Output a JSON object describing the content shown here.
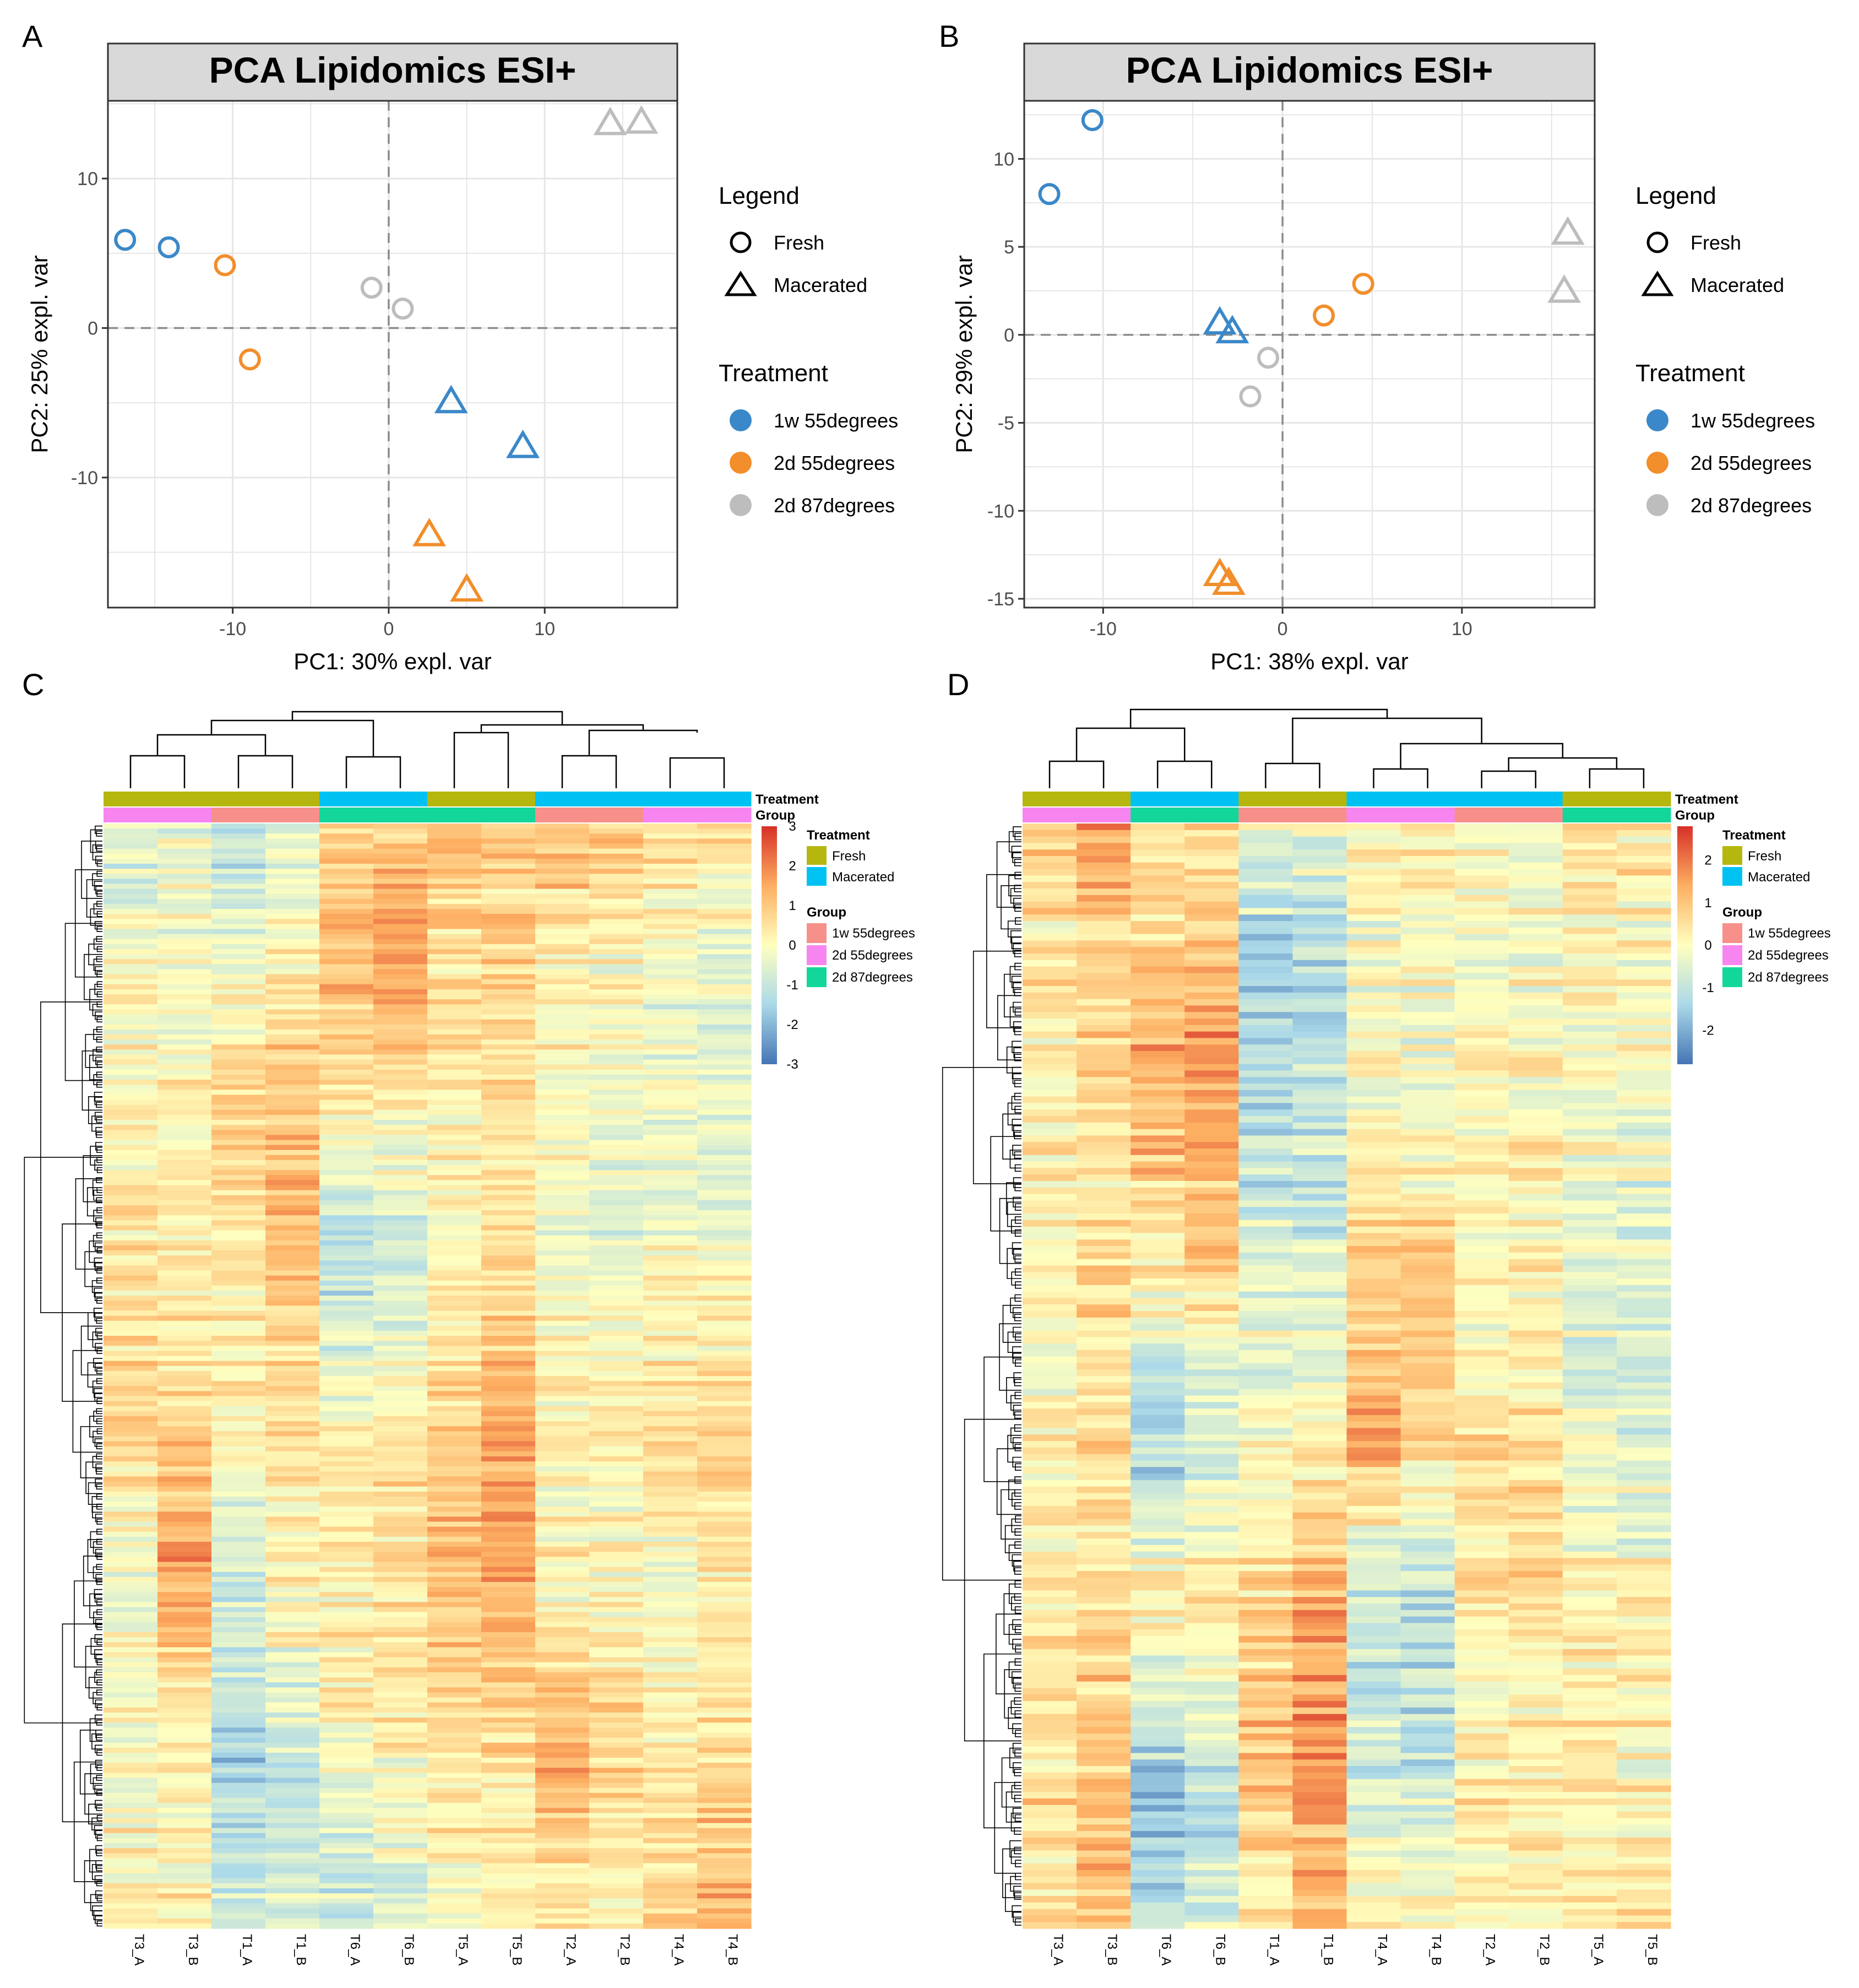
{
  "figure": {
    "panels": [
      {
        "letter": "A"
      },
      {
        "letter": "B"
      },
      {
        "letter": "C"
      },
      {
        "letter": "D"
      }
    ]
  },
  "colors": {
    "blue": "#3a88c9",
    "orange": "#f28e2b",
    "grey": "#bdbdbd",
    "fresh": "#b5b70f",
    "macerated": "#00c2f2",
    "g1w55": "#f7908a",
    "g2d55": "#f785f0",
    "g2d87": "#13d79a",
    "strip_fill": "#d9d9d9",
    "grid": "#e6e6e6",
    "heat_low": "#4575b4",
    "heat_mid": "#ffffbf",
    "heat_high": "#d73027"
  },
  "chart_data": [
    {
      "type": "scatter",
      "panel": "A",
      "title": "PCA Lipidomics ESI+",
      "xlabel": "PC1: 30% expl. var",
      "ylabel": "PC2: 25% expl. var",
      "xlim": [
        -18,
        18.5
      ],
      "ylim": [
        -18.7,
        15.2
      ],
      "xticks": [
        -10,
        0,
        10
      ],
      "yticks": [
        10,
        0,
        -10
      ],
      "legend": {
        "position": "right",
        "shape_title": "Legend",
        "shapes": [
          {
            "label": "Fresh",
            "shape": "circle"
          },
          {
            "label": "Macerated",
            "shape": "triangle"
          }
        ],
        "color_title": "Treatment",
        "colors": [
          {
            "label": "1w 55degrees",
            "color": "#3a88c9"
          },
          {
            "label": "2d 55degrees",
            "color": "#f28e2b"
          },
          {
            "label": "2d 87degrees",
            "color": "#bdbdbd"
          }
        ]
      },
      "points": [
        {
          "x": -16.9,
          "y": 5.9,
          "shape": "circle",
          "treatment": "1w 55degrees"
        },
        {
          "x": -14.1,
          "y": 5.4,
          "shape": "circle",
          "treatment": "1w 55degrees"
        },
        {
          "x": -10.5,
          "y": 4.2,
          "shape": "circle",
          "treatment": "2d 55degrees"
        },
        {
          "x": -8.9,
          "y": -2.1,
          "shape": "circle",
          "treatment": "2d 55degrees"
        },
        {
          "x": -1.1,
          "y": 2.7,
          "shape": "circle",
          "treatment": "2d 87degrees"
        },
        {
          "x": 0.9,
          "y": 1.3,
          "shape": "circle",
          "treatment": "2d 87degrees"
        },
        {
          "x": 4.0,
          "y": -4.9,
          "shape": "triangle",
          "treatment": "1w 55degrees"
        },
        {
          "x": 8.6,
          "y": -7.9,
          "shape": "triangle",
          "treatment": "1w 55degrees"
        },
        {
          "x": 2.6,
          "y": -13.8,
          "shape": "triangle",
          "treatment": "2d 55degrees"
        },
        {
          "x": 5.0,
          "y": -17.5,
          "shape": "triangle",
          "treatment": "2d 55degrees"
        },
        {
          "x": 14.2,
          "y": 13.7,
          "shape": "triangle",
          "treatment": "2d 87degrees"
        },
        {
          "x": 16.2,
          "y": 13.8,
          "shape": "triangle",
          "treatment": "2d 87degrees"
        }
      ]
    },
    {
      "type": "scatter",
      "panel": "B",
      "title": "PCA Lipidomics ESI+",
      "xlabel": "PC1: 38% expl. var",
      "ylabel": "PC2: 29% expl. var",
      "xlim": [
        -14.4,
        17.4
      ],
      "ylim": [
        -15.5,
        13.3
      ],
      "xticks": [
        -10,
        0,
        10
      ],
      "yticks": [
        10,
        5,
        0,
        -5,
        -10,
        -15
      ],
      "legend": {
        "position": "right",
        "shape_title": "Legend",
        "shapes": [
          {
            "label": "Fresh",
            "shape": "circle"
          },
          {
            "label": "Macerated",
            "shape": "triangle"
          }
        ],
        "color_title": "Treatment",
        "colors": [
          {
            "label": "1w 55degrees",
            "color": "#3a88c9"
          },
          {
            "label": "2d 55degrees",
            "color": "#f28e2b"
          },
          {
            "label": "2d 87degrees",
            "color": "#bdbdbd"
          }
        ]
      },
      "points": [
        {
          "x": -13.0,
          "y": 8.0,
          "shape": "circle",
          "treatment": "1w 55degrees"
        },
        {
          "x": -10.6,
          "y": 12.2,
          "shape": "circle",
          "treatment": "1w 55degrees"
        },
        {
          "x": 2.3,
          "y": 1.1,
          "shape": "circle",
          "treatment": "2d 55degrees"
        },
        {
          "x": 4.5,
          "y": 2.9,
          "shape": "circle",
          "treatment": "2d 55degrees"
        },
        {
          "x": -0.8,
          "y": -1.3,
          "shape": "circle",
          "treatment": "2d 87degrees"
        },
        {
          "x": -1.8,
          "y": -3.5,
          "shape": "circle",
          "treatment": "2d 87degrees"
        },
        {
          "x": -3.5,
          "y": 0.7,
          "shape": "triangle",
          "treatment": "1w 55degrees"
        },
        {
          "x": -2.8,
          "y": 0.2,
          "shape": "triangle",
          "treatment": "1w 55degrees"
        },
        {
          "x": -3.5,
          "y": -13.6,
          "shape": "triangle",
          "treatment": "2d 55degrees"
        },
        {
          "x": -3.0,
          "y": -14.1,
          "shape": "triangle",
          "treatment": "2d 55degrees"
        },
        {
          "x": 15.9,
          "y": 5.8,
          "shape": "triangle",
          "treatment": "2d 87degrees"
        },
        {
          "x": 15.7,
          "y": 2.5,
          "shape": "triangle",
          "treatment": "2d 87degrees"
        }
      ]
    },
    {
      "type": "heatmap",
      "panel": "C",
      "samples": [
        "T3_A",
        "T3_B",
        "T1_A",
        "T1_B",
        "T6_A",
        "T6_B",
        "T5_A",
        "T5_B",
        "T2_A",
        "T2_B",
        "T4_A",
        "T4_B"
      ],
      "treatment": [
        "Fresh",
        "Fresh",
        "Fresh",
        "Fresh",
        "Macerated",
        "Macerated",
        "Fresh",
        "Fresh",
        "Macerated",
        "Macerated",
        "Macerated",
        "Macerated"
      ],
      "group": [
        "2d 55degrees",
        "2d 55degrees",
        "1w 55degrees",
        "1w 55degrees",
        "2d 87degrees",
        "2d 87degrees",
        "2d 87degrees",
        "2d 87degrees",
        "1w 55degrees",
        "1w 55degrees",
        "2d 55degrees",
        "2d 55degrees"
      ],
      "annotation_names": [
        "Treatment",
        "Group"
      ],
      "scale_ticks": [
        3,
        2,
        1,
        0,
        -1,
        -2,
        -3
      ],
      "scale_range": [
        -3,
        3
      ],
      "legend": {
        "treatment_title": "Treatment",
        "treatment_items": [
          {
            "label": "Fresh",
            "color": "#b5b70f"
          },
          {
            "label": "Macerated",
            "color": "#00c2f2"
          }
        ],
        "group_title": "Group",
        "group_items": [
          {
            "label": "1w 55degrees",
            "color": "#f7908a"
          },
          {
            "label": "2d 55degrees",
            "color": "#f785f0"
          },
          {
            "label": "2d 87degrees",
            "color": "#13d79a"
          }
        ]
      },
      "rows": 220,
      "column_profiles": [
        [
          [
            0,
            -0.8
          ],
          [
            0.1,
            -0.3
          ],
          [
            0.3,
            0.4
          ],
          [
            0.5,
            0.8
          ],
          [
            0.7,
            -0.3
          ],
          [
            0.85,
            0.1
          ],
          [
            1,
            0.3
          ]
        ],
        [
          [
            0,
            -0.6
          ],
          [
            0.1,
            -0.2
          ],
          [
            0.3,
            0.3
          ],
          [
            0.5,
            0.6
          ],
          [
            0.68,
            1.8
          ],
          [
            0.85,
            0.2
          ],
          [
            1,
            0.4
          ]
        ],
        [
          [
            0,
            -1.2
          ],
          [
            0.1,
            -0.5
          ],
          [
            0.28,
            1.0
          ],
          [
            0.5,
            0.2
          ],
          [
            0.7,
            -0.8
          ],
          [
            0.85,
            -1.6
          ],
          [
            1,
            -0.9
          ]
        ],
        [
          [
            0,
            -0.7
          ],
          [
            0.1,
            0.0
          ],
          [
            0.28,
            1.6
          ],
          [
            0.5,
            0.6
          ],
          [
            0.7,
            0.2
          ],
          [
            0.85,
            -1.1
          ],
          [
            1,
            -0.5
          ]
        ],
        [
          [
            0,
            0.8
          ],
          [
            0.12,
            1.6
          ],
          [
            0.25,
            0.4
          ],
          [
            0.38,
            -1.4
          ],
          [
            0.6,
            0.4
          ],
          [
            0.8,
            0.2
          ],
          [
            1,
            -1.1
          ]
        ],
        [
          [
            0,
            0.6
          ],
          [
            0.12,
            2.0
          ],
          [
            0.25,
            0.3
          ],
          [
            0.38,
            -0.9
          ],
          [
            0.6,
            0.6
          ],
          [
            0.8,
            0.4
          ],
          [
            1,
            -0.6
          ]
        ],
        [
          [
            0,
            1.2
          ],
          [
            0.12,
            0.7
          ],
          [
            0.3,
            0.2
          ],
          [
            0.5,
            0.6
          ],
          [
            0.65,
            1.3
          ],
          [
            0.85,
            0.5
          ],
          [
            1,
            0.2
          ]
        ],
        [
          [
            0,
            1.0
          ],
          [
            0.12,
            0.9
          ],
          [
            0.3,
            0.3
          ],
          [
            0.48,
            1.3
          ],
          [
            0.65,
            1.8
          ],
          [
            0.85,
            0.7
          ],
          [
            1,
            0.3
          ]
        ],
        [
          [
            0,
            1.2
          ],
          [
            0.15,
            0.2
          ],
          [
            0.35,
            -0.2
          ],
          [
            0.55,
            0.2
          ],
          [
            0.7,
            0.1
          ],
          [
            0.85,
            1.6
          ],
          [
            1,
            0.5
          ]
        ],
        [
          [
            0,
            0.8
          ],
          [
            0.15,
            0.0
          ],
          [
            0.35,
            -0.4
          ],
          [
            0.55,
            0.3
          ],
          [
            0.7,
            0.0
          ],
          [
            0.85,
            1.0
          ],
          [
            1,
            0.3
          ]
        ],
        [
          [
            0,
            0.6
          ],
          [
            0.15,
            -0.3
          ],
          [
            0.35,
            -0.2
          ],
          [
            0.55,
            0.6
          ],
          [
            0.7,
            -0.2
          ],
          [
            0.85,
            0.6
          ],
          [
            1,
            1.1
          ]
        ],
        [
          [
            0,
            0.4
          ],
          [
            0.15,
            -0.6
          ],
          [
            0.35,
            -0.5
          ],
          [
            0.55,
            0.9
          ],
          [
            0.7,
            0.3
          ],
          [
            0.85,
            0.8
          ],
          [
            1,
            1.7
          ]
        ]
      ]
    },
    {
      "type": "heatmap",
      "panel": "D",
      "samples": [
        "T3_A",
        "T3_B",
        "T6_A",
        "T6_B",
        "T1_A",
        "T1_B",
        "T4_A",
        "T4_B",
        "T2_A",
        "T2_B",
        "T5_A",
        "T5_B"
      ],
      "treatment": [
        "Fresh",
        "Fresh",
        "Macerated",
        "Macerated",
        "Fresh",
        "Fresh",
        "Macerated",
        "Macerated",
        "Macerated",
        "Macerated",
        "Fresh",
        "Fresh"
      ],
      "group": [
        "2d 55degrees",
        "2d 55degrees",
        "2d 87degrees",
        "2d 87degrees",
        "1w 55degrees",
        "1w 55degrees",
        "2d 55degrees",
        "2d 55degrees",
        "1w 55degrees",
        "1w 55degrees",
        "2d 87degrees",
        "2d 87degrees"
      ],
      "annotation_names": [
        "Treatment",
        "Group"
      ],
      "scale_ticks": [
        2,
        1,
        0,
        -1,
        -2
      ],
      "scale_range": [
        -2.8,
        2.8
      ],
      "legend": {
        "treatment_title": "Treatment",
        "treatment_items": [
          {
            "label": "Fresh",
            "color": "#b5b70f"
          },
          {
            "label": "Macerated",
            "color": "#00c2f2"
          }
        ],
        "group_title": "Group",
        "group_items": [
          {
            "label": "1w 55degrees",
            "color": "#f7908a"
          },
          {
            "label": "2d 55degrees",
            "color": "#f785f0"
          },
          {
            "label": "2d 87degrees",
            "color": "#13d79a"
          }
        ]
      },
      "rows": 170,
      "column_profiles": [
        [
          [
            0,
            0.8
          ],
          [
            0.15,
            0.4
          ],
          [
            0.35,
            0.2
          ],
          [
            0.5,
            0.1
          ],
          [
            0.7,
            0.3
          ],
          [
            0.88,
            0.7
          ],
          [
            1,
            0.5
          ]
        ],
        [
          [
            0,
            1.6
          ],
          [
            0.15,
            1.0
          ],
          [
            0.35,
            0.4
          ],
          [
            0.5,
            0.6
          ],
          [
            0.7,
            0.5
          ],
          [
            0.88,
            1.3
          ],
          [
            1,
            1.0
          ]
        ],
        [
          [
            0,
            0.4
          ],
          [
            0.2,
            1.6
          ],
          [
            0.35,
            0.8
          ],
          [
            0.55,
            -1.6
          ],
          [
            0.7,
            0.2
          ],
          [
            0.88,
            -1.9
          ],
          [
            1,
            -1.5
          ]
        ],
        [
          [
            0,
            0.5
          ],
          [
            0.2,
            1.9
          ],
          [
            0.35,
            1.2
          ],
          [
            0.55,
            -0.9
          ],
          [
            0.7,
            0.3
          ],
          [
            0.88,
            -1.2
          ],
          [
            1,
            -0.8
          ]
        ],
        [
          [
            0,
            -0.6
          ],
          [
            0.15,
            -1.5
          ],
          [
            0.35,
            -0.9
          ],
          [
            0.5,
            -0.4
          ],
          [
            0.7,
            0.6
          ],
          [
            0.85,
            1.1
          ],
          [
            1,
            0.4
          ]
        ],
        [
          [
            0,
            -0.5
          ],
          [
            0.15,
            -1.2
          ],
          [
            0.35,
            -1.0
          ],
          [
            0.5,
            -0.2
          ],
          [
            0.7,
            1.4
          ],
          [
            0.85,
            1.9
          ],
          [
            1,
            1.0
          ]
        ],
        [
          [
            0,
            0.0
          ],
          [
            0.25,
            0.1
          ],
          [
            0.45,
            0.9
          ],
          [
            0.55,
            1.8
          ],
          [
            0.7,
            -1.2
          ],
          [
            0.85,
            -0.7
          ],
          [
            1,
            0.2
          ]
        ],
        [
          [
            0,
            0.2
          ],
          [
            0.25,
            -0.2
          ],
          [
            0.45,
            1.1
          ],
          [
            0.55,
            0.8
          ],
          [
            0.7,
            -1.5
          ],
          [
            0.85,
            -1.0
          ],
          [
            1,
            0.0
          ]
        ],
        [
          [
            0,
            0.0
          ],
          [
            0.25,
            0.3
          ],
          [
            0.45,
            0.2
          ],
          [
            0.6,
            0.8
          ],
          [
            0.75,
            0.0
          ],
          [
            0.88,
            0.4
          ],
          [
            1,
            0.1
          ]
        ],
        [
          [
            0,
            -0.3
          ],
          [
            0.25,
            0.2
          ],
          [
            0.45,
            0.1
          ],
          [
            0.6,
            0.9
          ],
          [
            0.75,
            0.2
          ],
          [
            0.88,
            0.5
          ],
          [
            1,
            0.2
          ]
        ],
        [
          [
            0,
            0.6
          ],
          [
            0.25,
            0.0
          ],
          [
            0.45,
            -0.6
          ],
          [
            0.6,
            -0.4
          ],
          [
            0.75,
            0.2
          ],
          [
            0.88,
            0.3
          ],
          [
            1,
            0.5
          ]
        ],
        [
          [
            0,
            0.4
          ],
          [
            0.25,
            -0.1
          ],
          [
            0.45,
            -0.9
          ],
          [
            0.6,
            -0.5
          ],
          [
            0.75,
            0.3
          ],
          [
            0.88,
            0.1
          ],
          [
            1,
            0.6
          ]
        ]
      ]
    }
  ]
}
